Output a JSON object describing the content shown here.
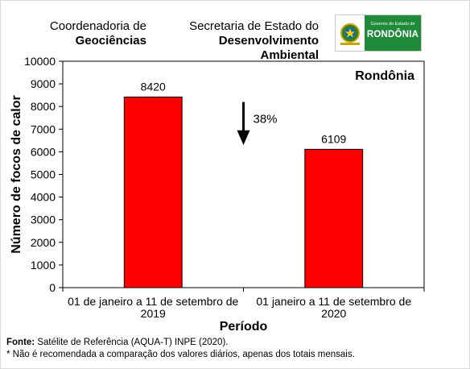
{
  "header": {
    "coord_line1": "Coordenadoria de",
    "coord_line2": "Geociências",
    "sec_line1": "Secretaria de Estado do",
    "sec_line2": "Desenvolvimento Ambiental"
  },
  "logo": {
    "gov_text": "Governo do Estado de",
    "state_text": "RONDÔNIA"
  },
  "chart_data": {
    "type": "bar",
    "title": "Rondônia",
    "ylabel": "Número de focos de calor",
    "xlabel": "Período",
    "ylim": [
      0,
      10000
    ],
    "yticks": [
      0,
      1000,
      2000,
      3000,
      4000,
      5000,
      6000,
      7000,
      8000,
      9000,
      10000
    ],
    "categories": [
      [
        "01 de janeiro a 11 de setembro de",
        "2019"
      ],
      [
        "01 janeiro a 11 de setembro de",
        "2020"
      ]
    ],
    "values": [
      8420,
      6109
    ],
    "bar_color": "#ff0000",
    "annotation": "38%",
    "grid": false
  },
  "footer": {
    "source_label": "Fonte:",
    "source_text": "Satélite de Referência (AQUA-T) INPE (2020).",
    "note": "* Não é recomendada a comparação dos valores diários, apenas dos totais mensais."
  }
}
